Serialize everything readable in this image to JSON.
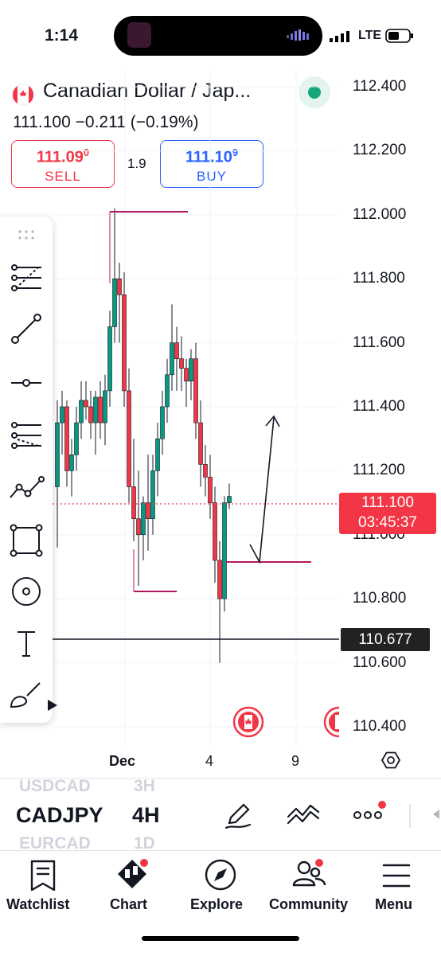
{
  "status_bar": {
    "time": "1:14",
    "network": "LTE"
  },
  "header": {
    "title": "Canadian Dollar / Jap...",
    "price_line": "111.100  −0.211 (−0.19%)",
    "sell": {
      "price_main": "111.09",
      "price_sup": "0",
      "label": "SELL"
    },
    "buy": {
      "price_main": "111.10",
      "price_sup": "9",
      "label": "BUY"
    },
    "spread": "1.9",
    "status_color": "#14a77c"
  },
  "chart": {
    "y_ticks": [
      "112.400",
      "112.200",
      "112.000",
      "111.800",
      "111.600",
      "111.400",
      "111.200",
      "111.000",
      "110.800",
      "110.600",
      "110.400"
    ],
    "x_ticks": [
      "Dec",
      "4",
      "9"
    ],
    "current_price": "111.100",
    "countdown": "03:45:37",
    "hline_price": "110.677",
    "up_color": "#089981",
    "down_color": "#f23645"
  },
  "symbol_bar": {
    "ghost_top_symbol": "USDCAD",
    "ghost_top_tf": "3H",
    "symbol": "CADJPY",
    "timeframe": "4H",
    "ghost_bottom_symbol": "EURCAD",
    "ghost_bottom_tf": "1D"
  },
  "tabs": [
    {
      "label": "Watchlist",
      "icon": "watchlist-icon"
    },
    {
      "label": "Chart",
      "icon": "chart-icon"
    },
    {
      "label": "Explore",
      "icon": "compass-icon"
    },
    {
      "label": "Community",
      "icon": "community-icon"
    },
    {
      "label": "Menu",
      "icon": "hamburger-icon"
    }
  ]
}
